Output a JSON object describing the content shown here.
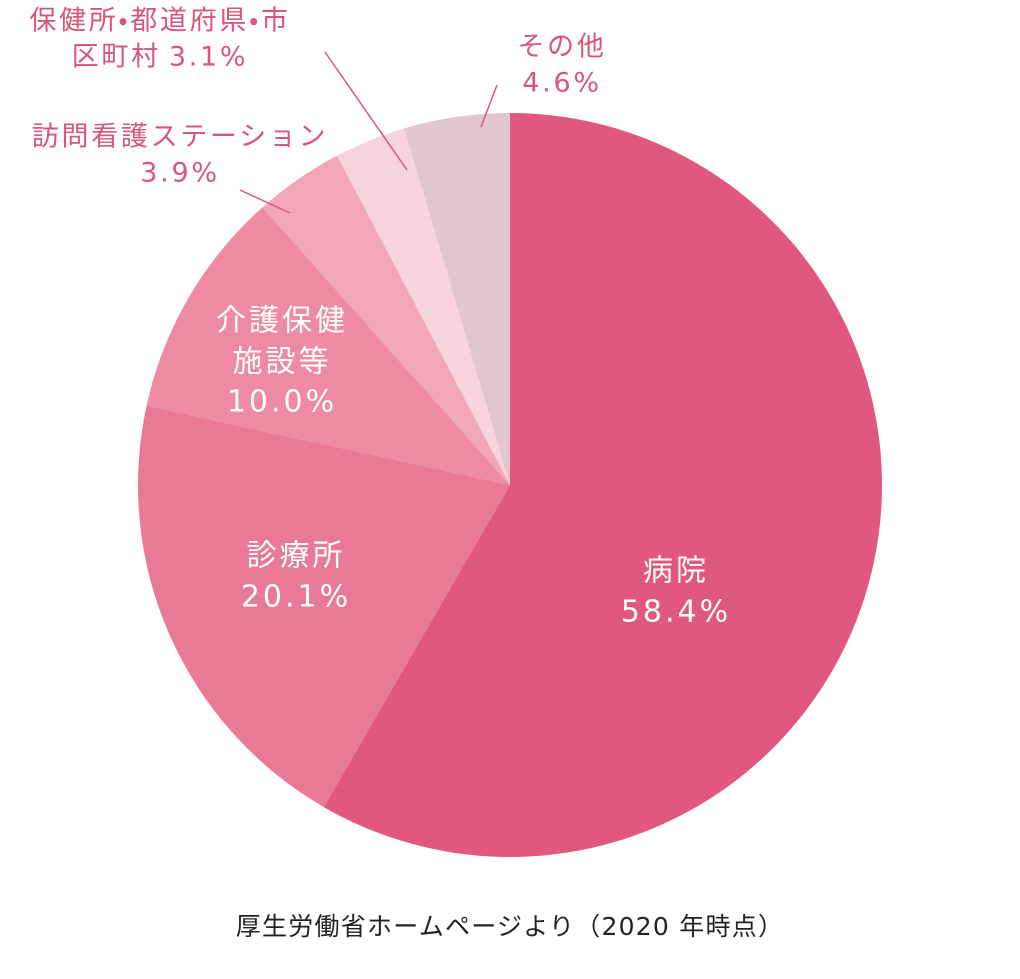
{
  "chart_data": {
    "type": "pie",
    "categories": [
      "病院",
      "診療所",
      "介護保健施設等",
      "訪問看護ステーション",
      "保健所・都道府県・市区町村",
      "その他"
    ],
    "values": [
      58.4,
      20.1,
      10.0,
      3.9,
      3.1,
      4.6
    ],
    "value_labels": [
      "58.4%",
      "20.1%",
      "10.0%",
      "3.9%",
      "3.1%",
      "4.6%"
    ],
    "colors": [
      "#e05880",
      "#e87a98",
      "#ef8aa5",
      "#f2a6bb",
      "#f7d3dd",
      "#e2c6cf"
    ],
    "source": "厚生労働省ホームページより（2020 年時点）"
  }
}
